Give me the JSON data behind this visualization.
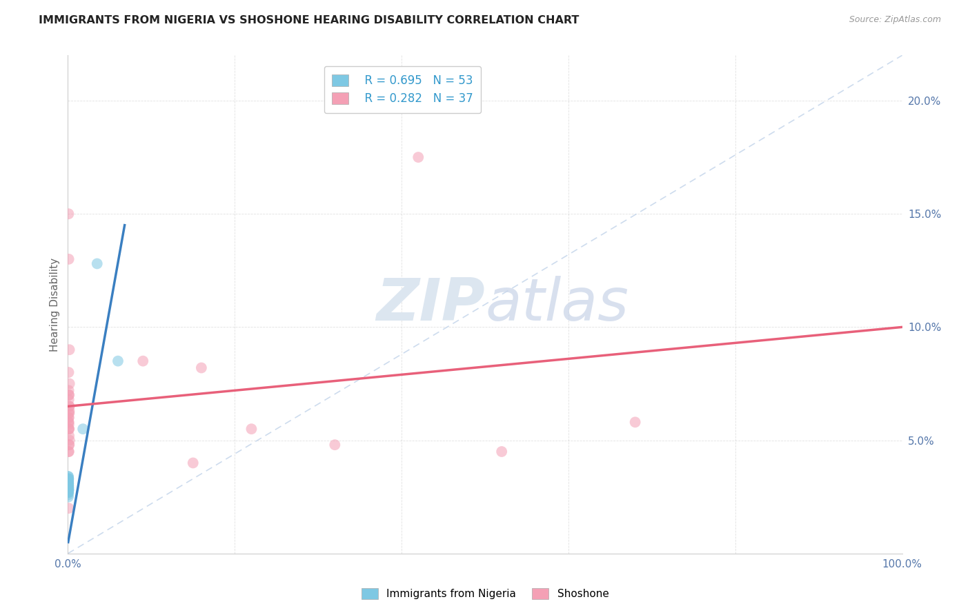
{
  "title": "IMMIGRANTS FROM NIGERIA VS SHOSHONE HEARING DISABILITY CORRELATION CHART",
  "source": "Source: ZipAtlas.com",
  "ylabel": "Hearing Disability",
  "xlim": [
    0,
    1.0
  ],
  "ylim": [
    0,
    0.22
  ],
  "blue_color": "#7ec8e3",
  "pink_color": "#f4a0b5",
  "blue_line_color": "#3a7fc1",
  "pink_line_color": "#e8607a",
  "diag_line_color": "#c8d8ec",
  "legend_r_blue": "R = 0.695",
  "legend_n_blue": "N = 53",
  "legend_r_pink": "R = 0.282",
  "legend_n_pink": "N = 37",
  "blue_label": "Immigrants from Nigeria",
  "pink_label": "Shoshone",
  "blue_scatter_x": [
    0.0005,
    0.0006,
    0.0007,
    0.0004,
    0.0008,
    0.0009,
    0.0005,
    0.0006,
    0.0004,
    0.0007,
    0.0003,
    0.0005,
    0.0006,
    0.0004,
    0.0008,
    0.0007,
    0.0005,
    0.0006,
    0.0003,
    0.0004,
    0.0005,
    0.0006,
    0.0007,
    0.0004,
    0.0005,
    0.0006,
    0.0003,
    0.0004,
    0.0005,
    0.0006,
    0.0007,
    0.0004,
    0.0003,
    0.0005,
    0.0006,
    0.0004,
    0.0005,
    0.0006,
    0.0004,
    0.0003,
    0.0005,
    0.0006,
    0.0004,
    0.0005,
    0.0006,
    0.0004,
    0.0005,
    0.0003,
    0.0004,
    0.0005,
    0.035,
    0.06,
    0.018
  ],
  "blue_scatter_y": [
    0.03,
    0.032,
    0.028,
    0.031,
    0.033,
    0.029,
    0.027,
    0.03,
    0.034,
    0.028,
    0.031,
    0.029,
    0.03,
    0.032,
    0.028,
    0.031,
    0.033,
    0.027,
    0.03,
    0.029,
    0.031,
    0.03,
    0.028,
    0.032,
    0.029,
    0.031,
    0.03,
    0.028,
    0.032,
    0.029,
    0.03,
    0.031,
    0.028,
    0.03,
    0.032,
    0.029,
    0.031,
    0.03,
    0.028,
    0.032,
    0.025,
    0.027,
    0.029,
    0.031,
    0.033,
    0.026,
    0.028,
    0.03,
    0.032,
    0.034,
    0.128,
    0.085,
    0.055
  ],
  "pink_scatter_x": [
    0.001,
    0.0015,
    0.0008,
    0.0012,
    0.0018,
    0.002,
    0.001,
    0.0014,
    0.0009,
    0.0016,
    0.0011,
    0.0013,
    0.0019,
    0.0017,
    0.0012,
    0.001,
    0.0008,
    0.0015,
    0.0012,
    0.001,
    0.0008,
    0.0013,
    0.0015,
    0.001,
    0.0018,
    0.0012,
    0.0008,
    0.001,
    0.16,
    0.22,
    0.32,
    0.42,
    0.52,
    0.09,
    0.15,
    0.68,
    0.001
  ],
  "pink_scatter_y": [
    0.06,
    0.055,
    0.045,
    0.07,
    0.065,
    0.05,
    0.058,
    0.052,
    0.08,
    0.062,
    0.068,
    0.048,
    0.075,
    0.063,
    0.057,
    0.072,
    0.058,
    0.065,
    0.045,
    0.06,
    0.055,
    0.07,
    0.048,
    0.062,
    0.09,
    0.055,
    0.15,
    0.13,
    0.082,
    0.055,
    0.048,
    0.175,
    0.045,
    0.085,
    0.04,
    0.058,
    0.02
  ],
  "blue_line_x": [
    0.0003,
    0.068
  ],
  "blue_line_y": [
    0.005,
    0.145
  ],
  "pink_line_x": [
    0.0,
    1.0
  ],
  "pink_line_y": [
    0.065,
    0.1
  ],
  "background_color": "#ffffff",
  "watermark_color": "#dce6f0",
  "grid_color": "#cccccc",
  "tick_color": "#5577aa",
  "title_color": "#222222",
  "source_color": "#999999"
}
